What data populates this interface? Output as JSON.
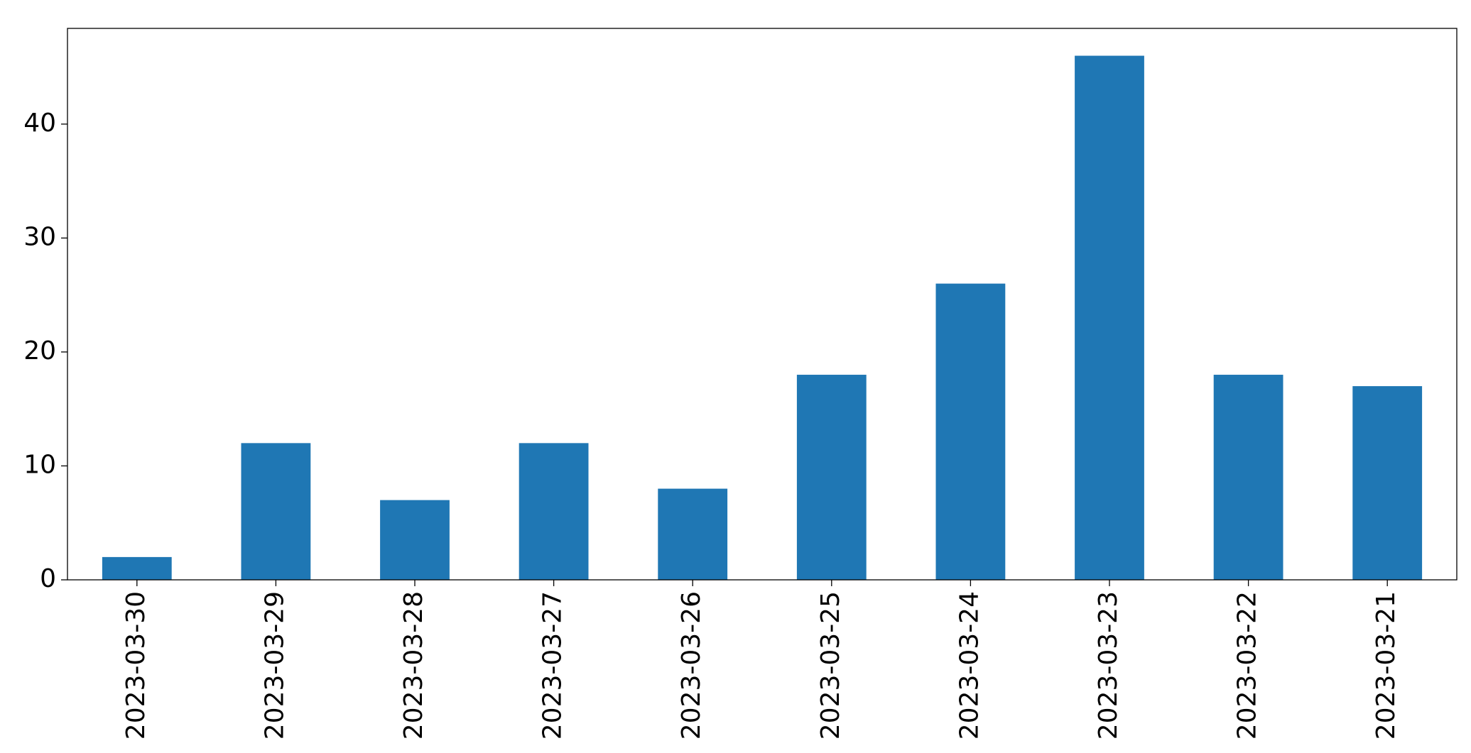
{
  "chart_data": {
    "type": "bar",
    "categories": [
      "2023-03-30",
      "2023-03-29",
      "2023-03-28",
      "2023-03-27",
      "2023-03-26",
      "2023-03-25",
      "2023-03-24",
      "2023-03-23",
      "2023-03-22",
      "2023-03-21"
    ],
    "values": [
      2,
      12,
      7,
      12,
      8,
      18,
      26,
      46,
      18,
      17
    ],
    "color": "#1f77b4",
    "ylim": [
      0,
      48.4
    ],
    "yticks": [
      0,
      10,
      20,
      30,
      40
    ],
    "grid": false
  }
}
